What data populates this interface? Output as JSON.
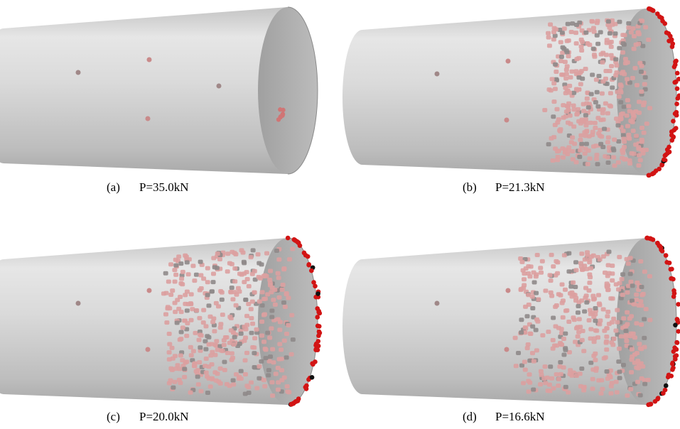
{
  "panels": [
    {
      "label": "(a)",
      "caption": "P=35.0kN"
    },
    {
      "label": "(b)",
      "caption": "P=21.3kN"
    },
    {
      "label": "(c)",
      "caption": "P=20.0kN"
    },
    {
      "label": "(d)",
      "caption": "P=16.6kN"
    }
  ]
}
